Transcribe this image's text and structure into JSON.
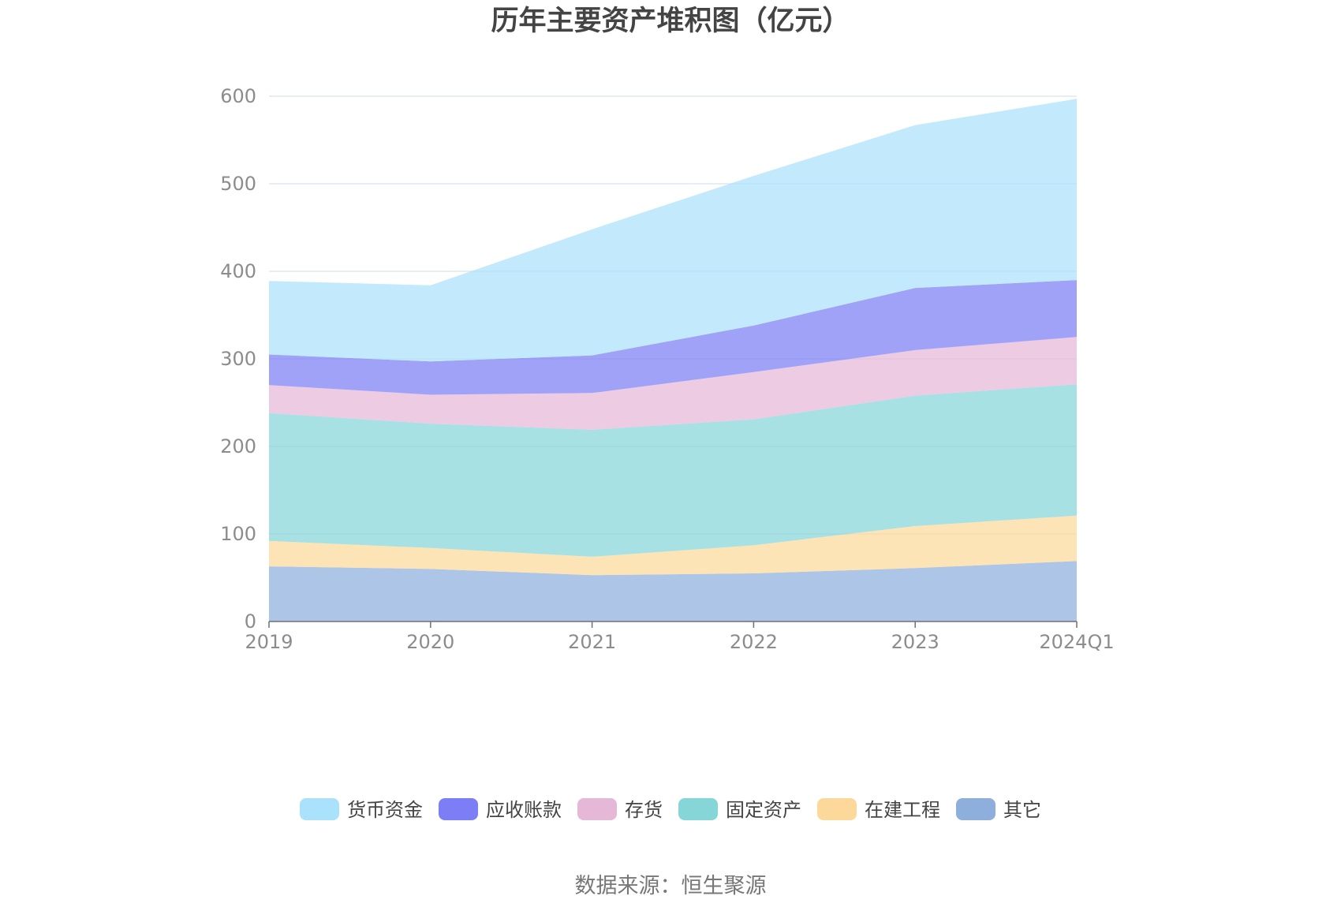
{
  "chart_data": {
    "type": "area",
    "stacked": true,
    "title": "历年主要资产堆积图（亿元）",
    "xlabel": "",
    "ylabel": "",
    "categories": [
      "2019",
      "2020",
      "2021",
      "2022",
      "2023",
      "2024Q1"
    ],
    "ylim": [
      0,
      600
    ],
    "yticks": [
      0,
      100,
      200,
      300,
      400,
      500,
      600
    ],
    "grid": true,
    "legend_position": "bottom",
    "series": [
      {
        "name": "其它",
        "color": "#8eaedc",
        "values": [
          63,
          60,
          53,
          55,
          61,
          69
        ]
      },
      {
        "name": "在建工程",
        "color": "#fcd99a",
        "values": [
          29,
          24,
          21,
          32,
          48,
          52
        ]
      },
      {
        "name": "固定资产",
        "color": "#86d6d8",
        "values": [
          146,
          142,
          145,
          144,
          149,
          150
        ]
      },
      {
        "name": "存货",
        "color": "#e6b8d8",
        "values": [
          32,
          33,
          42,
          54,
          52,
          54
        ]
      },
      {
        "name": "应收账款",
        "color": "#7b7ef5",
        "values": [
          35,
          38,
          43,
          53,
          71,
          65
        ]
      },
      {
        "name": "货币资金",
        "color": "#aae2fb",
        "values": [
          84,
          87,
          144,
          171,
          186,
          207
        ]
      }
    ],
    "legend_order": [
      "货币资金",
      "应收账款",
      "存货",
      "固定资产",
      "在建工程",
      "其它"
    ]
  },
  "source": "数据来源：恒生聚源"
}
